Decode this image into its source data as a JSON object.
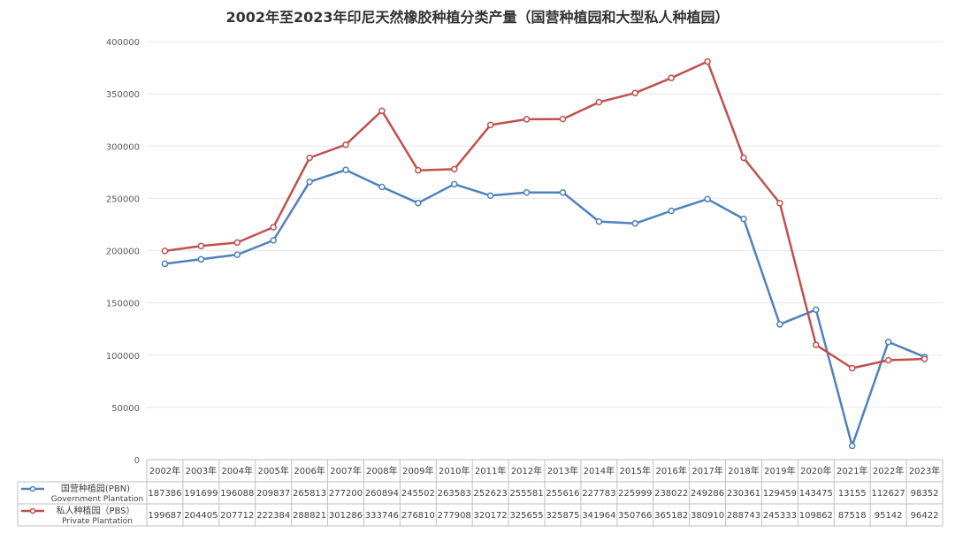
{
  "chart_data": {
    "type": "line",
    "title": "2002年至2023年印尼天然橡胶种植分类产量（国营种植园和大型私人种植园）",
    "categories": [
      "2002年",
      "2003年",
      "2004年",
      "2005年",
      "2006年",
      "2007年",
      "2008年",
      "2009年",
      "2010年",
      "2011年",
      "2012年",
      "2013年",
      "2014年",
      "2015年",
      "2016年",
      "2017年",
      "2018年",
      "2019年",
      "2020年",
      "2021年",
      "2022年",
      "2023年"
    ],
    "y_ticks": [
      "0",
      "50000",
      "100000",
      "150000",
      "200000",
      "250000",
      "300000",
      "350000",
      "400000"
    ],
    "ylim": [
      0,
      400000
    ],
    "grid": true,
    "legend_position": "data-table",
    "series": [
      {
        "name": "国营种植园(PBN)",
        "name_en": "Government Plantation",
        "color": "#4f81bd",
        "values": [
          187386,
          191699,
          196088,
          209837,
          265813,
          277200,
          260894,
          245502,
          263583,
          252623,
          255581,
          255616,
          227783,
          225999,
          238022,
          249286,
          230361,
          129459,
          143475,
          13155,
          112627,
          98352
        ]
      },
      {
        "name": "私人种植园（PBS）",
        "name_en": "Private Plantation",
        "color": "#c0504d",
        "values": [
          199687,
          204405,
          207712,
          222384,
          288821,
          301286,
          333746,
          276810,
          277908,
          320172,
          325655,
          325875,
          341964,
          350766,
          365182,
          380910,
          288743,
          245333,
          109862,
          87518,
          95142,
          96422
        ]
      }
    ]
  }
}
